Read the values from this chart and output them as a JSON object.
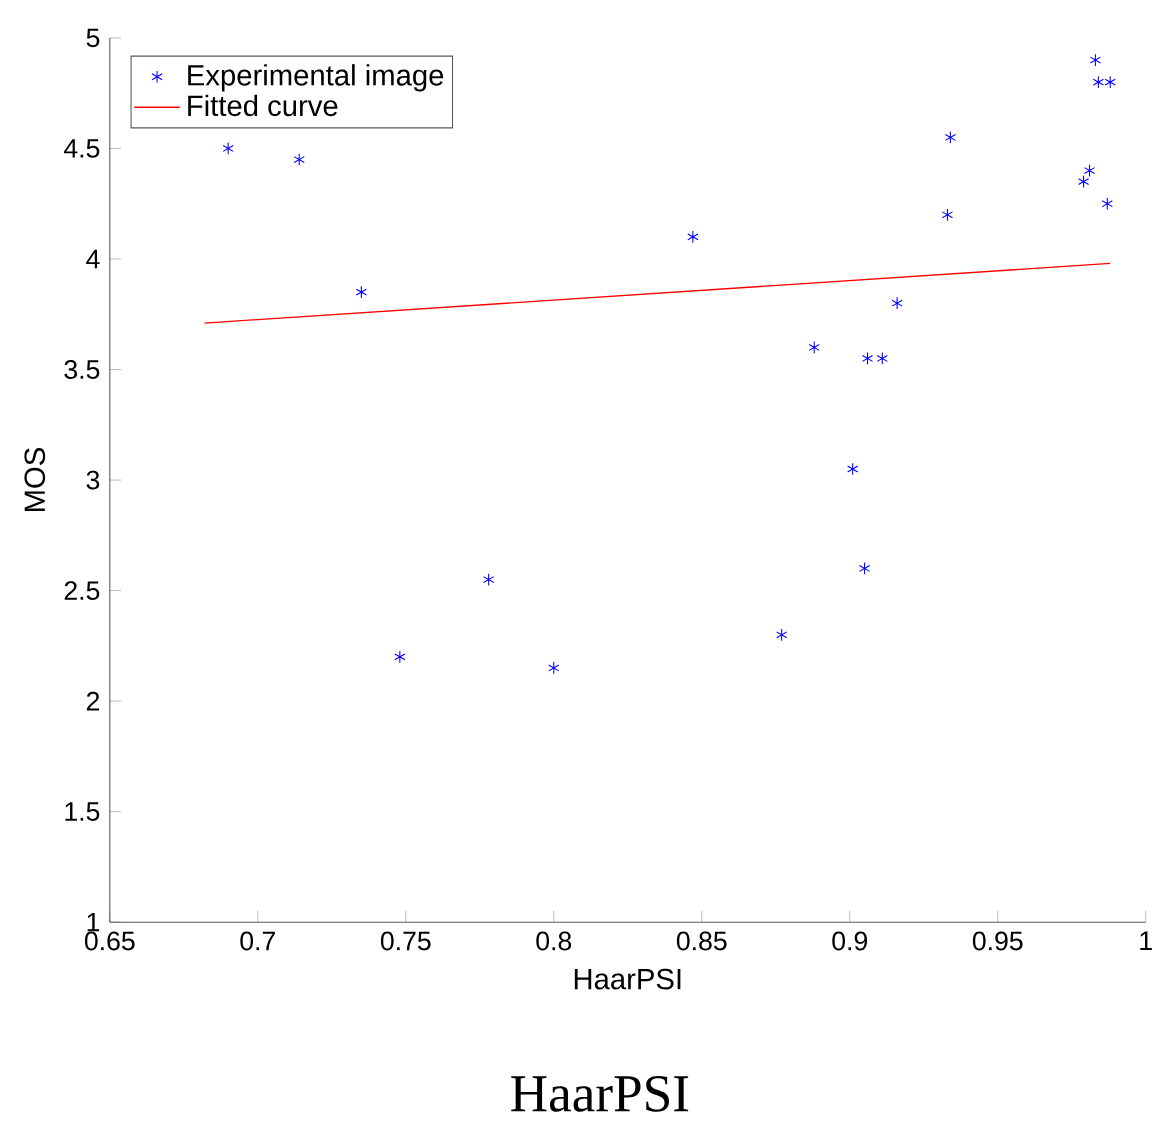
{
  "chart_data": {
    "type": "scatter",
    "xlabel": "HaarPSI",
    "ylabel": "MOS",
    "annotations": [
      "HaarPSI"
    ],
    "xlim": [
      0.65,
      1
    ],
    "ylim": [
      1,
      5
    ],
    "xticks": [
      0.65,
      0.7,
      0.75,
      0.8,
      0.85,
      0.9,
      0.95,
      1
    ],
    "yticks": [
      1,
      1.5,
      2,
      2.5,
      3,
      3.5,
      4,
      4.5,
      5
    ],
    "legend": "top left",
    "marker": "cross",
    "grid": false,
    "series": [
      {
        "name": "Experimental image",
        "color": "#0000ff",
        "x": [
          0.69,
          0.714,
          0.735,
          0.748,
          0.778,
          0.8,
          0.847,
          0.877,
          0.888,
          0.901,
          0.905,
          0.906,
          0.911,
          0.916,
          0.933,
          0.934,
          0.979,
          0.981,
          0.983,
          0.984,
          0.988,
          0.987
        ],
        "values": [
          4.5,
          4.45,
          3.85,
          2.2,
          2.55,
          2.15,
          4.1,
          2.3,
          3.6,
          3.05,
          2.6,
          3.55,
          3.55,
          3.8,
          4.2,
          4.55,
          4.35,
          4.4,
          4.9,
          4.8,
          4.8,
          4.25
        ]
      },
      {
        "name": "Fitted curve",
        "color": "#ff0000",
        "type": "line",
        "marker": "none",
        "line_style": "solid",
        "x": [
          0.682,
          0.988
        ],
        "values": [
          3.71,
          3.98
        ]
      }
    ]
  }
}
